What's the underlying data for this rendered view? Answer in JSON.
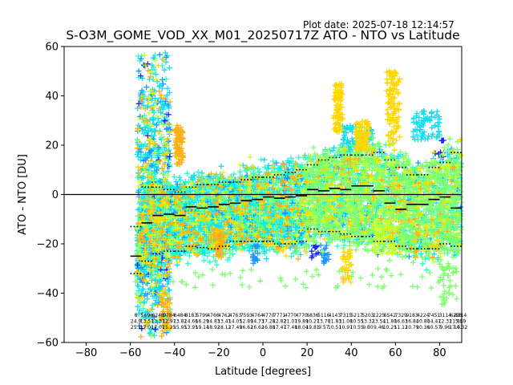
{
  "plot_date": "Plot date: 2025-07-18 12:14:57",
  "chart_data": {
    "type": "scatter",
    "title": "S-O3M_GOME_VOD_XX_M01_20250717Z ATO - NTO vs Latitude",
    "xlabel": "Latitude [degrees]",
    "ylabel": "ATO - NTO [DU]",
    "xlim": [
      -90,
      90
    ],
    "ylim": [
      -60,
      60
    ],
    "xticks": [
      -80,
      -60,
      -40,
      -20,
      0,
      20,
      40,
      60,
      80
    ],
    "yticks": [
      -60,
      -40,
      -20,
      0,
      20,
      40,
      60
    ],
    "xtick_labels": [
      "−80",
      "−60",
      "−40",
      "−20",
      "0",
      "20",
      "40",
      "60",
      "80"
    ],
    "ytick_labels": [
      "−60",
      "−40",
      "−20",
      "0",
      "20",
      "40",
      "60"
    ],
    "grid": false,
    "zero_line": 0,
    "marker": "+",
    "colors": {
      "deep_blue": "#1428f0",
      "blue": "#1e96ff",
      "cyan": "#14dcf0",
      "aquamarine": "#28ffc8",
      "green": "#7dff6e",
      "yellow_green": "#d2ff28",
      "yellow": "#ffd700",
      "orange": "#ffb014"
    },
    "bins": [
      {
        "lat": -57.5,
        "mean": -25.0,
        "p_hi": -13.0,
        "p_lo": -32.0
      },
      {
        "lat": -52.5,
        "mean": -11.5,
        "p_hi": 3.0,
        "p_lo": -27.0
      },
      {
        "lat": -47.5,
        "mean": -8.5,
        "p_hi": 3.0,
        "p_lo": -24.0
      },
      {
        "lat": -42.5,
        "mean": -8.0,
        "p_hi": 2.0,
        "p_lo": -23.0
      },
      {
        "lat": -37.5,
        "mean": -8.5,
        "p_hi": 1.0,
        "p_lo": -23.0
      },
      {
        "lat": -32.5,
        "mean": -5.0,
        "p_hi": 3.0,
        "p_lo": -21.0
      },
      {
        "lat": -27.5,
        "mean": -5.5,
        "p_hi": 4.0,
        "p_lo": -21.5
      },
      {
        "lat": -22.5,
        "mean": -5.0,
        "p_hi": 4.0,
        "p_lo": -22.0
      },
      {
        "lat": -17.5,
        "mean": -4.0,
        "p_hi": 5.0,
        "p_lo": -21.0
      },
      {
        "lat": -12.5,
        "mean": -3.5,
        "p_hi": 5.0,
        "p_lo": -19.0
      },
      {
        "lat": -7.5,
        "mean": -2.5,
        "p_hi": 6.0,
        "p_lo": -19.0
      },
      {
        "lat": -2.5,
        "mean": -2.0,
        "p_hi": 7.0,
        "p_lo": -19.0
      },
      {
        "lat": 2.5,
        "mean": -1.0,
        "p_hi": 7.0,
        "p_lo": -19.0
      },
      {
        "lat": 7.5,
        "mean": -1.5,
        "p_hi": 8.0,
        "p_lo": -20.0
      },
      {
        "lat": 12.5,
        "mean": -1.0,
        "p_hi": 9.0,
        "p_lo": -20.0
      },
      {
        "lat": 17.5,
        "mean": -0.5,
        "p_hi": 10.0,
        "p_lo": -19.0
      },
      {
        "lat": 22.5,
        "mean": 2.0,
        "p_hi": 12.0,
        "p_lo": -14.0
      },
      {
        "lat": 27.5,
        "mean": 1.5,
        "p_hi": 14.0,
        "p_lo": -15.0
      },
      {
        "lat": 32.5,
        "mean": 2.5,
        "p_hi": 15.0,
        "p_lo": -15.0
      },
      {
        "lat": 37.5,
        "mean": 2.0,
        "p_hi": 16.0,
        "p_lo": -16.0
      },
      {
        "lat": 42.5,
        "mean": 3.5,
        "p_hi": 16.0,
        "p_lo": -17.0
      },
      {
        "lat": 47.5,
        "mean": 3.5,
        "p_hi": 16.0,
        "p_lo": -17.0
      },
      {
        "lat": 52.5,
        "mean": 1.5,
        "p_hi": 17.0,
        "p_lo": -19.0
      },
      {
        "lat": 57.5,
        "mean": -3.5,
        "p_hi": 14.0,
        "p_lo": -19.0
      },
      {
        "lat": 62.5,
        "mean": -6.0,
        "p_hi": 11.0,
        "p_lo": -21.0
      },
      {
        "lat": 67.5,
        "mean": -4.0,
        "p_hi": 8.0,
        "p_lo": -22.0
      },
      {
        "lat": 72.5,
        "mean": -4.0,
        "p_hi": 8.0,
        "p_lo": -22.0
      },
      {
        "lat": 77.5,
        "mean": -2.0,
        "p_hi": 11.0,
        "p_lo": -22.0
      },
      {
        "lat": 82.5,
        "mean": -1.0,
        "p_hi": 13.0,
        "p_lo": -20.0
      },
      {
        "lat": 87.5,
        "mean": -5.5,
        "p_hi": 17.0,
        "p_lo": -21.0
      }
    ],
    "bin_labels": [
      {
        "lat": -57.5,
        "lines": [
          "8",
          "24.9",
          "25.1"
        ]
      },
      {
        "lat": -52.5,
        "lines": [
          "5696",
          "13.51",
          "17.01"
        ]
      },
      {
        "lat": -47.5,
        "lines": [
          "6248",
          "13.37",
          "17.07"
        ]
      },
      {
        "lat": -42.5,
        "lines": [
          "9784",
          "12.97",
          "15.25"
        ]
      },
      {
        "lat": -37.5,
        "lines": [
          "6484",
          "13.82",
          "15.95"
        ]
      },
      {
        "lat": -32.5,
        "lines": [
          "8183",
          "14.66",
          "13.95"
        ]
      },
      {
        "lat": -27.5,
        "lines": [
          "5799",
          "16.29",
          "19.14"
        ]
      },
      {
        "lat": -22.5,
        "lines": [
          "4766",
          "14.83",
          "18.92"
        ]
      },
      {
        "lat": -17.5,
        "lines": [
          "4762",
          "13.41",
          "18.12"
        ]
      },
      {
        "lat": -12.5,
        "lines": [
          "4763",
          "14.05",
          "17.49"
        ]
      },
      {
        "lat": -7.5,
        "lines": [
          "7593",
          "12.89",
          "16.62"
        ]
      },
      {
        "lat": -2.5,
        "lines": [
          "4764",
          "14.73",
          "16.62"
        ]
      },
      {
        "lat": 2.5,
        "lines": [
          "4770",
          "17.28",
          "16.88"
        ]
      },
      {
        "lat": 7.5,
        "lines": [
          "7771",
          "12.82",
          "17.47"
        ]
      },
      {
        "lat": 12.5,
        "lines": [
          "4770",
          "21.07",
          "17.48"
        ]
      },
      {
        "lat": 17.5,
        "lines": [
          "4770",
          "19.89",
          "18.04"
        ]
      },
      {
        "lat": 22.5,
        "lines": [
          "6836",
          "10.27",
          "19.81"
        ]
      },
      {
        "lat": 27.5,
        "lines": [
          "5116",
          "13.70",
          "9.57"
        ]
      },
      {
        "lat": 32.5,
        "lines": [
          "4143",
          "11.83",
          "10.51"
        ]
      },
      {
        "lat": 37.5,
        "lines": [
          "7315",
          "11.08",
          "10.97"
        ]
      },
      {
        "lat": 42.5,
        "lines": [
          "5217",
          "10.55",
          "10.55"
        ]
      },
      {
        "lat": 47.5,
        "lines": [
          "5203",
          "13.32",
          "9.80"
        ]
      },
      {
        "lat": 52.5,
        "lines": [
          "2225",
          "13.54",
          "9.46"
        ]
      },
      {
        "lat": 57.5,
        "lines": [
          "6542",
          "11.80",
          "10.25"
        ]
      },
      {
        "lat": 62.5,
        "lines": [
          "7329",
          "16.63",
          "11.12"
        ]
      },
      {
        "lat": 67.5,
        "lines": [
          "9183",
          "16.84",
          "10.79"
        ]
      },
      {
        "lat": 72.5,
        "lines": [
          "4224",
          "10.80",
          "10.36"
        ]
      },
      {
        "lat": 77.5,
        "lines": [
          "7451",
          "14.47",
          "10.57"
        ]
      },
      {
        "lat": 82.5,
        "lines": [
          "3114",
          "12.32",
          "9.96"
        ]
      },
      {
        "lat": 87.5,
        "lines": [
          "6298",
          "11.84",
          "17.41"
        ]
      }
    ],
    "bin_labels_edge": {
      "lat": 89.5,
      "lines": [
        "8314",
        "5.59",
        "10.32"
      ]
    }
  }
}
